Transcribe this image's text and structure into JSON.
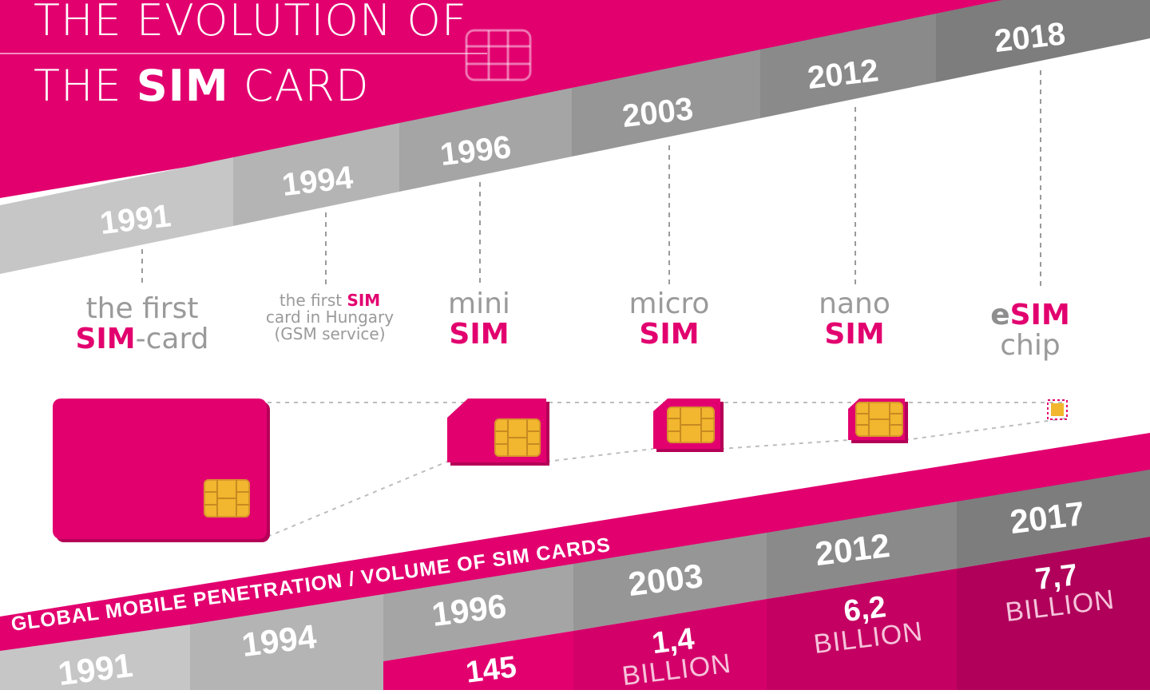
{
  "title": {
    "line1": "THE EVOLUTION OF",
    "line2_prefix": "THE ",
    "line2_bold": "SIM",
    "line2_suffix": " CARD"
  },
  "timeline_top": {
    "years": [
      "1991",
      "1994",
      "1996",
      "2003",
      "2012",
      "2018"
    ]
  },
  "stages": [
    {
      "line1": "the first",
      "line2_pink": "SIM",
      "line2_rest": "-card"
    },
    {
      "line1_rest": "the first ",
      "line1_pink": "SIM",
      "line2": "card in Hungary",
      "line3": "(GSM service)"
    },
    {
      "line1": "mini",
      "line2_pink": "SIM"
    },
    {
      "line1": "micro",
      "line2_pink": "SIM"
    },
    {
      "line1": "nano",
      "line2_pink": "SIM"
    },
    {
      "line1_gray": "e",
      "line1_pink": "SIM",
      "line2": "chip"
    }
  ],
  "banner": {
    "text": "GLOBAL MOBILE PENETRATION / VOLUME OF SIM CARDS"
  },
  "timeline_bottom": {
    "years": [
      "1991",
      "1994",
      "1996",
      "2003",
      "2012",
      "2017"
    ]
  },
  "volumes": [
    {
      "num": "145",
      "unit": ""
    },
    {
      "num": "1,4",
      "unit": "BILLION"
    },
    {
      "num": "6,2",
      "unit": "BILLION"
    },
    {
      "num": "7,7",
      "unit": "BILLION"
    }
  ],
  "colors": {
    "magenta": "#e2006f",
    "dark_magenta": "#b8005a",
    "chip_gold": "#f2b62f",
    "gray_light": "#c4c4c4",
    "gray_mid": "#a9a9a9",
    "gray_dark": "#8e8e8e"
  },
  "icons": [
    "sim-chip-outline-icon",
    "sim-card-icon",
    "sim-chip-icon"
  ]
}
